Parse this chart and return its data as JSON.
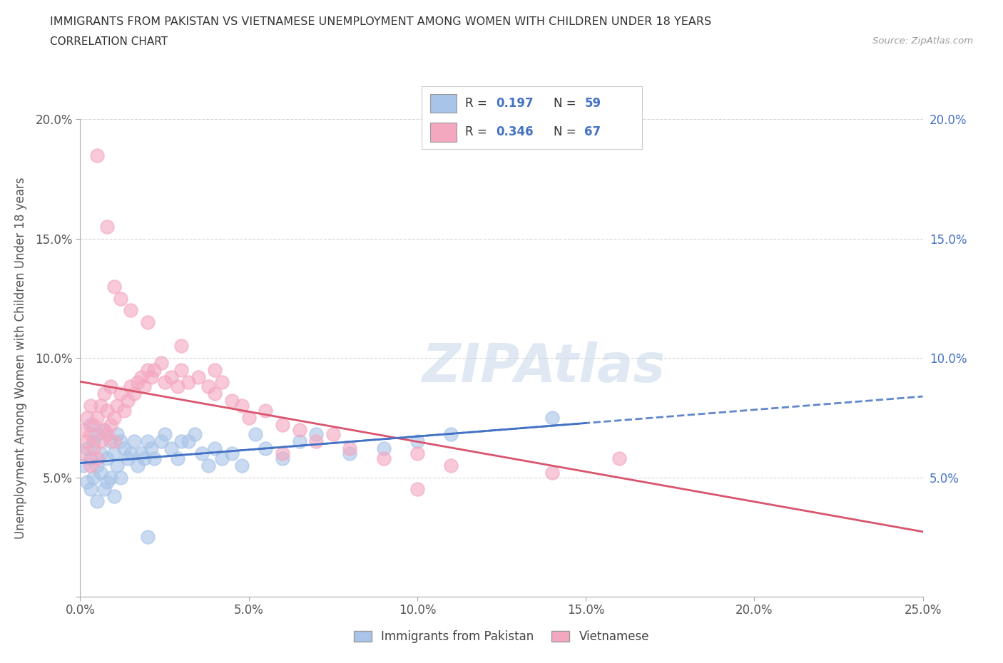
{
  "title": "IMMIGRANTS FROM PAKISTAN VS VIETNAMESE UNEMPLOYMENT AMONG WOMEN WITH CHILDREN UNDER 18 YEARS",
  "subtitle": "CORRELATION CHART",
  "source": "Source: ZipAtlas.com",
  "ylabel": "Unemployment Among Women with Children Under 18 years",
  "xlim": [
    0.0,
    0.25
  ],
  "ylim": [
    0.0,
    0.2
  ],
  "xticks": [
    0.0,
    0.05,
    0.1,
    0.15,
    0.2,
    0.25
  ],
  "yticks": [
    0.0,
    0.05,
    0.1,
    0.15,
    0.2
  ],
  "xticklabels": [
    "0.0%",
    "5.0%",
    "10.0%",
    "15.0%",
    "20.0%",
    "25.0%"
  ],
  "yticklabels": [
    "",
    "5.0%",
    "10.0%",
    "15.0%",
    "20.0%"
  ],
  "right_yticklabels": [
    "",
    "5.0%",
    "10.0%",
    "15.0%",
    "20.0%"
  ],
  "pakistan_R": 0.197,
  "pakistan_N": 59,
  "vietnamese_R": 0.346,
  "vietnamese_N": 67,
  "pakistan_color": "#a8c4e8",
  "pakistan_line_color": "#4472c4",
  "vietnamese_color": "#f4a8c0",
  "vietnamese_line_color": "#d9546e",
  "watermark": "ZIPAtlas",
  "background_color": "#ffffff",
  "grid_color": "#cccccc",
  "pakistan_x": [
    0.001,
    0.002,
    0.002,
    0.003,
    0.003,
    0.003,
    0.004,
    0.004,
    0.005,
    0.005,
    0.005,
    0.006,
    0.006,
    0.007,
    0.007,
    0.008,
    0.008,
    0.009,
    0.009,
    0.01,
    0.01,
    0.011,
    0.011,
    0.012,
    0.012,
    0.013,
    0.014,
    0.015,
    0.016,
    0.017,
    0.018,
    0.019,
    0.02,
    0.021,
    0.022,
    0.024,
    0.025,
    0.027,
    0.029,
    0.03,
    0.032,
    0.034,
    0.036,
    0.038,
    0.04,
    0.042,
    0.045,
    0.048,
    0.052,
    0.055,
    0.06,
    0.065,
    0.07,
    0.08,
    0.09,
    0.1,
    0.11,
    0.14,
    0.02
  ],
  "pakistan_y": [
    0.055,
    0.048,
    0.062,
    0.045,
    0.058,
    0.072,
    0.05,
    0.065,
    0.04,
    0.055,
    0.068,
    0.052,
    0.06,
    0.045,
    0.07,
    0.048,
    0.058,
    0.05,
    0.065,
    0.042,
    0.06,
    0.055,
    0.068,
    0.05,
    0.065,
    0.062,
    0.058,
    0.06,
    0.065,
    0.055,
    0.06,
    0.058,
    0.065,
    0.062,
    0.058,
    0.065,
    0.068,
    0.062,
    0.058,
    0.065,
    0.065,
    0.068,
    0.06,
    0.055,
    0.062,
    0.058,
    0.06,
    0.055,
    0.068,
    0.062,
    0.058,
    0.065,
    0.068,
    0.06,
    0.062,
    0.065,
    0.068,
    0.075,
    0.025
  ],
  "vietnamese_x": [
    0.001,
    0.001,
    0.002,
    0.002,
    0.003,
    0.003,
    0.003,
    0.004,
    0.004,
    0.005,
    0.005,
    0.006,
    0.006,
    0.007,
    0.007,
    0.008,
    0.008,
    0.009,
    0.009,
    0.01,
    0.01,
    0.011,
    0.012,
    0.013,
    0.014,
    0.015,
    0.016,
    0.017,
    0.018,
    0.019,
    0.02,
    0.021,
    0.022,
    0.024,
    0.025,
    0.027,
    0.029,
    0.03,
    0.032,
    0.035,
    0.038,
    0.04,
    0.042,
    0.045,
    0.048,
    0.05,
    0.055,
    0.06,
    0.065,
    0.07,
    0.075,
    0.08,
    0.09,
    0.1,
    0.11,
    0.14,
    0.16,
    0.005,
    0.008,
    0.01,
    0.012,
    0.015,
    0.02,
    0.03,
    0.04,
    0.06,
    0.1
  ],
  "vietnamese_y": [
    0.06,
    0.07,
    0.065,
    0.075,
    0.055,
    0.068,
    0.08,
    0.062,
    0.072,
    0.058,
    0.075,
    0.065,
    0.08,
    0.07,
    0.085,
    0.068,
    0.078,
    0.072,
    0.088,
    0.065,
    0.075,
    0.08,
    0.085,
    0.078,
    0.082,
    0.088,
    0.085,
    0.09,
    0.092,
    0.088,
    0.095,
    0.092,
    0.095,
    0.098,
    0.09,
    0.092,
    0.088,
    0.095,
    0.09,
    0.092,
    0.088,
    0.085,
    0.09,
    0.082,
    0.08,
    0.075,
    0.078,
    0.072,
    0.07,
    0.065,
    0.068,
    0.062,
    0.058,
    0.06,
    0.055,
    0.052,
    0.058,
    0.185,
    0.155,
    0.13,
    0.125,
    0.12,
    0.115,
    0.105,
    0.095,
    0.06,
    0.045
  ]
}
